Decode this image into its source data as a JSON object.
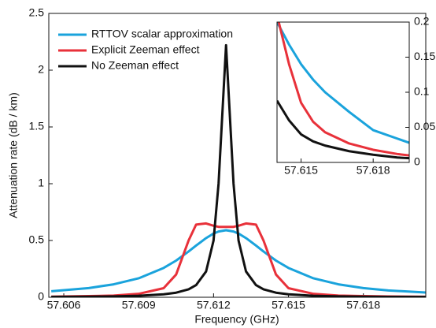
{
  "chart_data": [
    {
      "type": "line",
      "x_label": "Frequency (GHz)",
      "y_label": "Attenuation rate (dB / km)",
      "x": [
        57.6055,
        57.607,
        57.608,
        57.609,
        57.61,
        57.6105,
        57.611,
        57.6113,
        57.6117,
        57.612,
        57.6122,
        57.6125,
        57.6128,
        57.613,
        57.6133,
        57.6137,
        57.614,
        57.6145,
        57.615,
        57.616,
        57.617,
        57.618,
        57.619,
        57.6205
      ],
      "series": [
        {
          "name": "RTTOV scalar approximation",
          "color": "#1aa3dc",
          "values": [
            0.053,
            0.081,
            0.114,
            0.167,
            0.258,
            0.323,
            0.403,
            0.455,
            0.521,
            0.561,
            0.579,
            0.59,
            0.579,
            0.561,
            0.521,
            0.455,
            0.403,
            0.323,
            0.258,
            0.167,
            0.114,
            0.081,
            0.06,
            0.042
          ]
        },
        {
          "name": "Explicit Zeeman effect",
          "color": "#e8313a",
          "values": [
            0.005,
            0.01,
            0.015,
            0.03,
            0.08,
            0.2,
            0.5,
            0.64,
            0.65,
            0.63,
            0.62,
            0.62,
            0.62,
            0.63,
            0.65,
            0.64,
            0.5,
            0.2,
            0.08,
            0.03,
            0.015,
            0.01,
            0.007,
            0.004
          ]
        },
        {
          "name": "No Zeeman effect",
          "color": "#111111",
          "values": [
            0.0033,
            0.0053,
            0.008,
            0.013,
            0.026,
            0.04,
            0.07,
            0.107,
            0.227,
            0.5,
            1.0,
            2.22,
            1.0,
            0.5,
            0.227,
            0.107,
            0.07,
            0.04,
            0.026,
            0.013,
            0.008,
            0.0053,
            0.0038,
            0.0025
          ]
        }
      ],
      "xlim": [
        57.6054,
        57.6205
      ],
      "xticks": [
        57.606,
        57.609,
        57.612,
        57.615,
        57.618
      ],
      "ylim": [
        0,
        2.5
      ],
      "yticks": [
        0,
        0.5,
        1,
        1.5,
        2,
        2.5
      ],
      "legend": "upper left",
      "grid": false
    },
    {
      "type": "line",
      "x": [
        57.614,
        57.6145,
        57.615,
        57.6155,
        57.616,
        57.617,
        57.618,
        57.619,
        57.6195
      ],
      "series": [
        {
          "name": "RTTOV scalar approximation",
          "color": "#1aa3dc",
          "values": [
            0.2,
            0.168,
            0.14,
            0.118,
            0.1,
            0.072,
            0.046,
            0.034,
            0.028
          ]
        },
        {
          "name": "Explicit Zeeman effect",
          "color": "#e8313a",
          "values": [
            0.21,
            0.14,
            0.085,
            0.058,
            0.043,
            0.027,
            0.018,
            0.012,
            0.01
          ]
        },
        {
          "name": "No Zeeman effect",
          "color": "#111111",
          "values": [
            0.088,
            0.06,
            0.04,
            0.03,
            0.024,
            0.016,
            0.011,
            0.007,
            0.006
          ]
        }
      ],
      "xlim": [
        57.614,
        57.6195
      ],
      "xticks": [
        57.615,
        57.618
      ],
      "ylim": [
        0,
        0.2
      ],
      "yticks": [
        0,
        0.05,
        0.1,
        0.15,
        0.2
      ],
      "y_axis_side": "right",
      "grid": false
    }
  ]
}
